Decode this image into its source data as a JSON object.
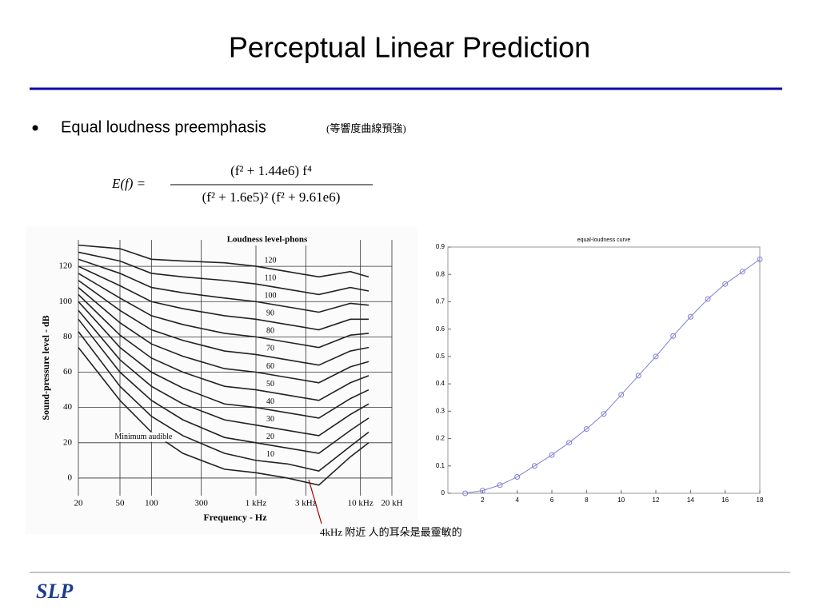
{
  "header": {
    "title": "Perceptual Linear Prediction"
  },
  "bullet": {
    "text": "Equal loudness preemphasis",
    "note": "(等響度曲線預強)"
  },
  "formula": {
    "lhs": "E(f) =",
    "numerator": "(f² + 1.44e6) f⁴",
    "denominator": "(f² + 1.6e5)² (f² + 9.61e6)"
  },
  "annotation": "4kHz 附近 人的耳朵是最靈敏的",
  "footer": {
    "logo": "SLP"
  },
  "chart_data": [
    {
      "type": "line",
      "title": "Loudness level-phons",
      "x_label": "Frequency - Hz",
      "y_label": "Sound-pressure level - dB",
      "xscale": "log",
      "grid": true,
      "x": [
        20,
        50,
        100,
        200,
        500,
        1000,
        2000,
        4000,
        8000,
        12000
      ],
      "xlim": [
        20,
        20000
      ],
      "xticks": [
        20,
        50,
        100,
        300,
        {
          "value": 1000,
          "label": "1 kHz"
        },
        {
          "value": 3000,
          "label": "3 kHz"
        },
        {
          "value": 10000,
          "label": "10 kHz"
        },
        {
          "value": 20000,
          "label": "20 kH"
        }
      ],
      "ylim": [
        -10,
        135
      ],
      "yticks": [
        0,
        20,
        40,
        60,
        80,
        100,
        120
      ],
      "series": [
        {
          "name": "120",
          "color": "#222222",
          "values": [
            132,
            130,
            124,
            123,
            122,
            120,
            117,
            114,
            117,
            114
          ]
        },
        {
          "name": "110",
          "color": "#222222",
          "values": [
            128,
            123,
            116,
            114,
            112,
            110,
            107,
            104,
            108,
            106
          ]
        },
        {
          "name": "100",
          "color": "#222222",
          "values": [
            124,
            116,
            108,
            105,
            102,
            100,
            97,
            94,
            99,
            98
          ]
        },
        {
          "name": "90",
          "color": "#222222",
          "values": [
            120,
            109,
            100,
            96,
            92,
            90,
            87,
            84,
            90,
            90
          ]
        },
        {
          "name": "80",
          "color": "#222222",
          "values": [
            116,
            102,
            92,
            87,
            82,
            80,
            77,
            74,
            81,
            82
          ]
        },
        {
          "name": "70",
          "color": "#222222",
          "values": [
            112,
            95,
            84,
            78,
            72,
            70,
            67,
            64,
            72,
            74
          ]
        },
        {
          "name": "60",
          "color": "#222222",
          "values": [
            108,
            88,
            76,
            69,
            62,
            60,
            57,
            54,
            63,
            66
          ]
        },
        {
          "name": "50",
          "color": "#222222",
          "values": [
            104,
            81,
            68,
            60,
            52,
            50,
            47,
            44,
            54,
            58
          ]
        },
        {
          "name": "40",
          "color": "#222222",
          "values": [
            100,
            74,
            60,
            51,
            42,
            40,
            37,
            34,
            45,
            50
          ]
        },
        {
          "name": "30",
          "color": "#222222",
          "values": [
            95,
            67,
            52,
            42,
            33,
            30,
            27,
            24,
            36,
            42
          ]
        },
        {
          "name": "20",
          "color": "#222222",
          "values": [
            90,
            60,
            44,
            33,
            23,
            20,
            17,
            14,
            27,
            34
          ]
        },
        {
          "name": "10",
          "color": "#222222",
          "values": [
            83,
            52,
            35,
            24,
            14,
            10,
            8,
            4,
            18,
            26
          ]
        },
        {
          "name": "Minimum audible",
          "color": "#222222",
          "values": [
            74,
            44,
            26,
            14,
            5,
            3,
            0,
            -4,
            12,
            20
          ]
        }
      ]
    },
    {
      "type": "line",
      "title": "equal-loudness curve",
      "markers": true,
      "x": [
        1,
        2,
        3,
        4,
        5,
        6,
        7,
        8,
        9,
        10,
        11,
        12,
        13,
        14,
        15,
        16,
        17,
        18
      ],
      "xlim": [
        0,
        18
      ],
      "xticks": [
        2,
        4,
        6,
        8,
        10,
        12,
        14,
        16,
        18
      ],
      "ylim": [
        0,
        0.9
      ],
      "yticks": [
        0,
        0.1,
        0.2,
        0.3,
        0.4,
        0.5,
        0.6,
        0.7,
        0.8,
        0.9
      ],
      "series": [
        {
          "color": "#8080d8",
          "values": [
            0,
            0.01,
            0.03,
            0.06,
            0.1,
            0.14,
            0.185,
            0.235,
            0.29,
            0.36,
            0.43,
            0.5,
            0.575,
            0.645,
            0.71,
            0.765,
            0.81,
            0.855
          ]
        }
      ]
    }
  ]
}
